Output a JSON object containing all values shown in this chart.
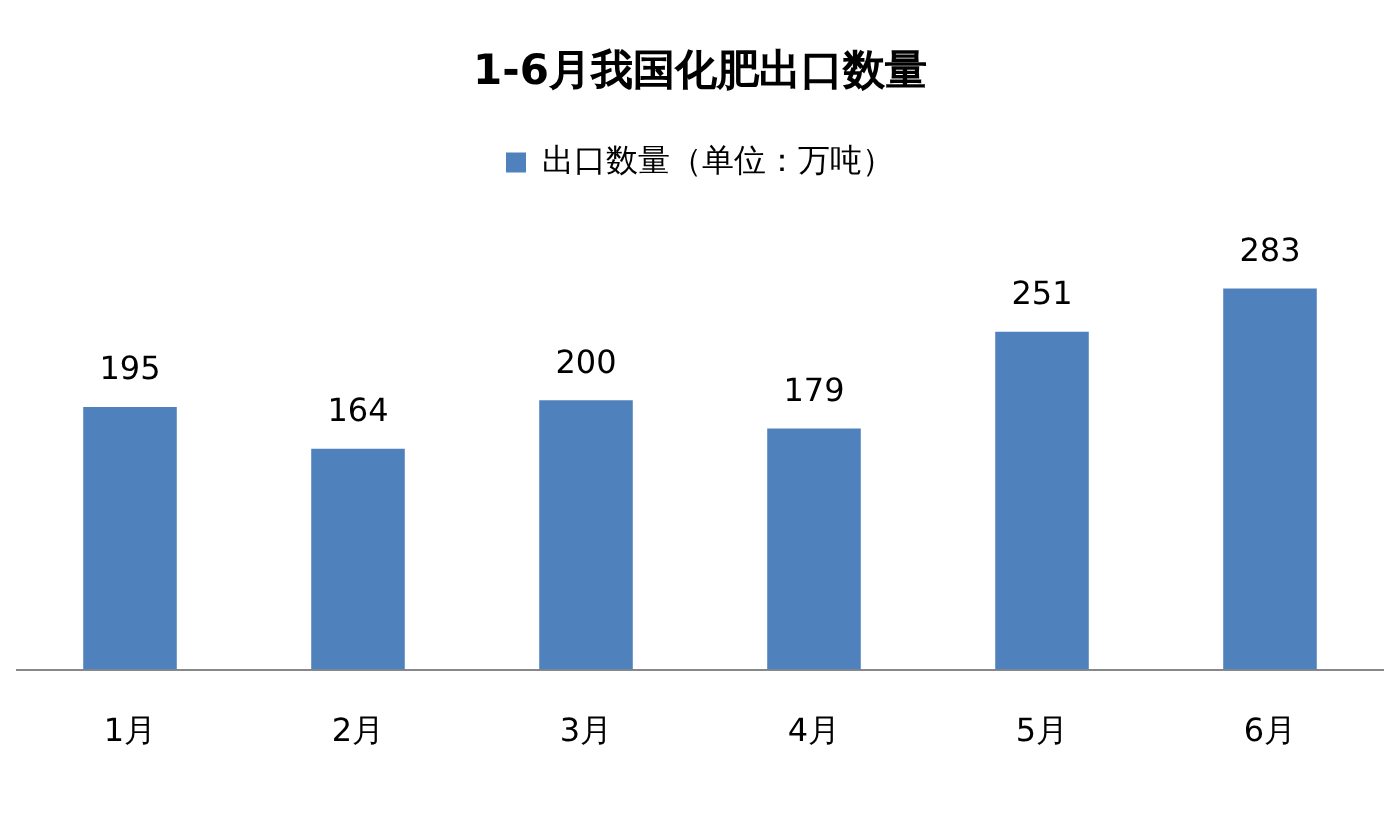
{
  "chart_data": {
    "type": "bar",
    "title": "1-6月我国化肥出口数量",
    "categories": [
      "1月",
      "2月",
      "3月",
      "4月",
      "5月",
      "6月"
    ],
    "series": [
      {
        "name": "出口数量（单位：万吨）",
        "color": "#4f81bd",
        "values": [
          195,
          164,
          200,
          179,
          251,
          283
        ]
      }
    ],
    "data_labels": true,
    "legend": "top",
    "grid": false
  }
}
